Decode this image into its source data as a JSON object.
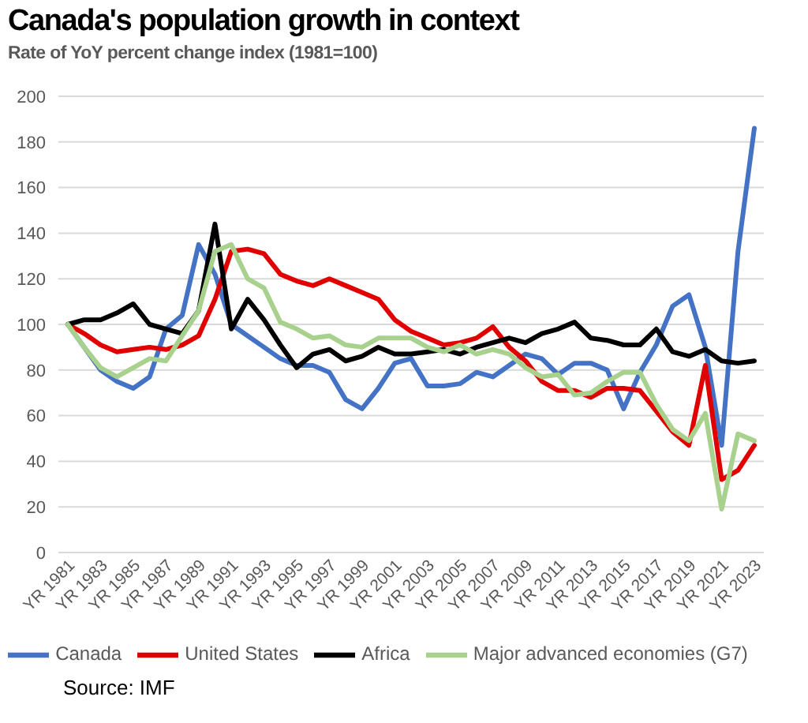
{
  "chart_data": {
    "type": "line",
    "title": "Canada's population growth in context",
    "subtitle": "Rate of YoY percent change index (1981=100)",
    "annotations": [
      "Source: IMF"
    ],
    "categories": [
      "YR 1981",
      null,
      "YR 1983",
      null,
      "YR 1985",
      null,
      "YR 1987",
      null,
      "YR 1989",
      null,
      "YR 1991",
      null,
      "YR 1993",
      null,
      "YR 1995",
      null,
      "YR 1997",
      null,
      "YR 1999",
      null,
      "YR 2001",
      null,
      "YR 2003",
      null,
      "YR 2005",
      null,
      "YR 2007",
      null,
      "YR 2009",
      null,
      "YR 2011",
      null,
      "YR 2013",
      null,
      "YR 2015",
      null,
      "YR 2017",
      null,
      "YR 2019",
      null,
      "YR 2021",
      null,
      "YR 2023"
    ],
    "series": [
      {
        "name": "Canada",
        "color": "#4472c4",
        "values": [
          100,
          90,
          80,
          75,
          72,
          77,
          98,
          104,
          135,
          122,
          100,
          95,
          90,
          85,
          82,
          82,
          79,
          67,
          63,
          72,
          83,
          85,
          73,
          73,
          74,
          79,
          77,
          82,
          87,
          85,
          78,
          83,
          83,
          80,
          63,
          79,
          91,
          108,
          113,
          90,
          47,
          132,
          186
        ]
      },
      {
        "name": "United States",
        "color": "#e00000",
        "values": [
          100,
          96,
          91,
          88,
          89,
          90,
          89,
          91,
          95,
          111,
          132,
          133,
          131,
          122,
          119,
          117,
          120,
          117,
          114,
          111,
          102,
          97,
          94,
          91,
          92,
          94,
          99,
          90,
          84,
          75,
          71,
          71,
          68,
          72,
          72,
          71,
          62,
          53,
          47,
          82,
          32,
          36,
          47
        ]
      },
      {
        "name": "Africa",
        "color": "#000000",
        "values": [
          100,
          102,
          102,
          105,
          109,
          100,
          98,
          96,
          106,
          144,
          98,
          111,
          102,
          91,
          81,
          87,
          89,
          84,
          86,
          90,
          87,
          87,
          88,
          89,
          87,
          90,
          92,
          94,
          92,
          96,
          98,
          101,
          94,
          93,
          91,
          91,
          98,
          88,
          86,
          89,
          84,
          83,
          84
        ]
      },
      {
        "name": "Major advanced economies (G7)",
        "color": "#a9d18e",
        "values": [
          100,
          90,
          81,
          77,
          81,
          85,
          84,
          95,
          106,
          132,
          135,
          120,
          116,
          101,
          98,
          94,
          95,
          91,
          90,
          94,
          94,
          94,
          90,
          88,
          91,
          87,
          89,
          87,
          81,
          77,
          78,
          69,
          70,
          75,
          79,
          79,
          65,
          54,
          49,
          61,
          19,
          52,
          49
        ]
      }
    ],
    "ylim": [
      0,
      200
    ],
    "yticks": [
      0,
      20,
      40,
      60,
      80,
      100,
      120,
      140,
      160,
      180,
      200
    ],
    "grid": "y",
    "legend": "bottom",
    "line_style": "solid"
  }
}
